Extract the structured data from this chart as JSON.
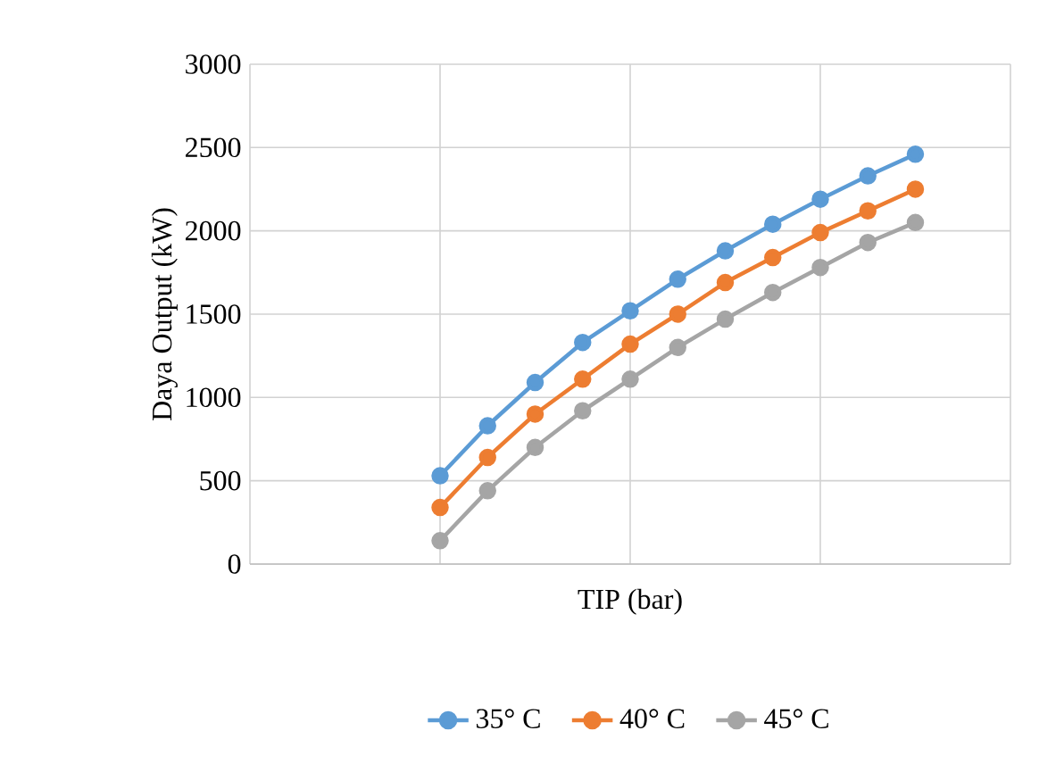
{
  "chart_data": {
    "type": "line",
    "xlabel": "TIP (bar)",
    "ylabel": "Daya Output (kW)",
    "categories": [
      null,
      null,
      null,
      null,
      null,
      null,
      null,
      null,
      null,
      null,
      null
    ],
    "series": [
      {
        "name": "35° C",
        "color": "#5b9bd5",
        "values": [
          530,
          830,
          1090,
          1330,
          1520,
          1710,
          1880,
          2040,
          2190,
          2330,
          2460
        ]
      },
      {
        "name": "40° C",
        "color": "#ed7d31",
        "values": [
          340,
          640,
          900,
          1110,
          1320,
          1500,
          1690,
          1840,
          1990,
          2120,
          2250
        ]
      },
      {
        "name": "45° C",
        "color": "#a5a5a5",
        "values": [
          140,
          440,
          700,
          920,
          1110,
          1300,
          1470,
          1630,
          1780,
          1930,
          2050
        ]
      }
    ],
    "ylim": [
      0,
      3000
    ],
    "yticks": [
      0,
      500,
      1000,
      1500,
      2000,
      2500,
      3000
    ],
    "grid": true,
    "legend": "bottom",
    "marker": "circle",
    "line_style": "solid",
    "tick_labels": "y"
  }
}
